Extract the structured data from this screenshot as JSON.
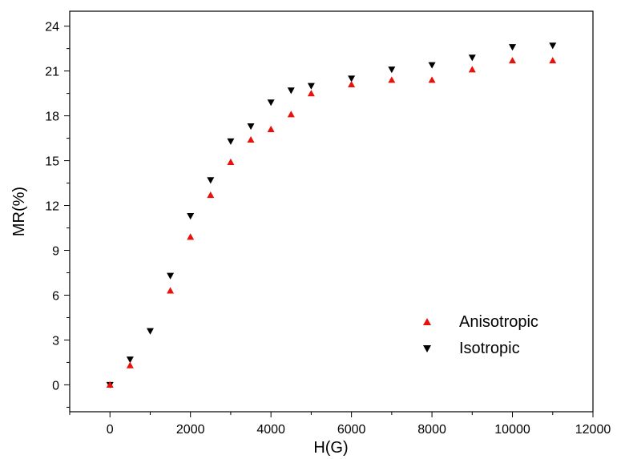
{
  "chart_data": {
    "type": "scatter",
    "title": "",
    "xlabel": "H(G)",
    "ylabel": "MR(%)",
    "xlim": [
      -1000,
      12000
    ],
    "ylim": [
      -1.8,
      25
    ],
    "xticks": [
      0,
      2000,
      4000,
      6000,
      8000,
      10000,
      12000
    ],
    "yticks": [
      0,
      3,
      6,
      9,
      12,
      15,
      18,
      21,
      24
    ],
    "grid": false,
    "legend_position": "bottom-right",
    "series": [
      {
        "name": "Anisotropic",
        "marker": "triangle-up",
        "color": "#e8120c",
        "x": [
          0,
          500,
          1500,
          2000,
          2500,
          3000,
          3500,
          4000,
          4500,
          5000,
          6000,
          7000,
          8000,
          9000,
          10000,
          11000
        ],
        "y": [
          0.0,
          1.3,
          6.3,
          9.9,
          12.7,
          14.9,
          16.4,
          17.1,
          18.1,
          19.5,
          20.1,
          20.4,
          20.4,
          21.1,
          21.7,
          21.7
        ]
      },
      {
        "name": "Isotropic",
        "marker": "triangle-down",
        "color": "#000000",
        "x": [
          0,
          500,
          1000,
          1500,
          2000,
          2500,
          3000,
          3500,
          4000,
          4500,
          5000,
          6000,
          7000,
          8000,
          9000,
          10000,
          11000
        ],
        "y": [
          0.0,
          1.7,
          3.6,
          7.3,
          11.3,
          13.7,
          16.3,
          17.3,
          18.9,
          19.7,
          20.0,
          20.5,
          21.1,
          21.4,
          21.9,
          22.6,
          22.7
        ]
      }
    ]
  }
}
